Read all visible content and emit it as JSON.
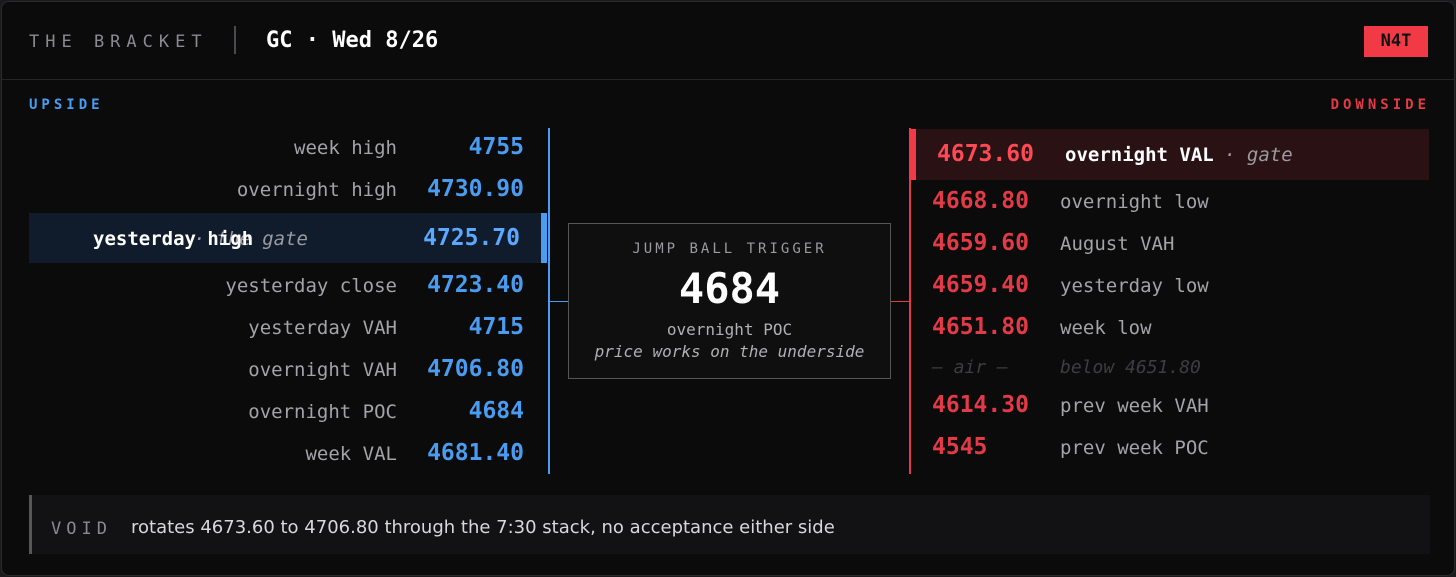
{
  "header": {
    "title": "THE BRACKET",
    "instrument": "GC · Wed 8/26",
    "badge": "N4T"
  },
  "upside": {
    "heading": "UPSIDE",
    "levels": [
      {
        "label": "week high",
        "value": "4755"
      },
      {
        "label": "overnight high",
        "value": "4730.90"
      },
      {
        "label": "yesterday high",
        "note": "· the gate",
        "value": "4725.70"
      },
      {
        "label": "yesterday close",
        "value": "4723.40"
      },
      {
        "label": "yesterday VAH",
        "value": "4715"
      },
      {
        "label": "overnight VAH",
        "value": "4706.80"
      },
      {
        "label": "overnight POC",
        "value": "4684"
      },
      {
        "label": "week VAL",
        "value": "4681.40"
      }
    ]
  },
  "center": {
    "heading": "JUMP BALL TRIGGER",
    "value": "4684",
    "label": "overnight POC",
    "note": "price works on the underside"
  },
  "downside": {
    "heading": "DOWNSIDE",
    "levels": [
      {
        "value": "4673.60",
        "label": "overnight VAL",
        "note": "· gate"
      },
      {
        "value": "4668.80",
        "label": "overnight low"
      },
      {
        "value": "4659.60",
        "label": "August VAH"
      },
      {
        "value": "4659.40",
        "label": "yesterday low"
      },
      {
        "value": "4651.80",
        "label": "week low"
      }
    ],
    "gap": {
      "value": "— air —",
      "label": "below 4651.80"
    },
    "below": [
      {
        "value": "4614.30",
        "label": "prev week VAH"
      },
      {
        "value": "4545",
        "label": "prev week POC"
      }
    ]
  },
  "footer": {
    "tag": "VOID",
    "text": "rotates 4673.60 to 4706.80 through the 7:30 stack, no acceptance either side"
  }
}
